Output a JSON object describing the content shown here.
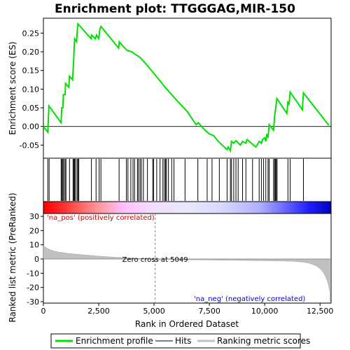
{
  "chart_data": {
    "type": "line",
    "title": "Enrichment plot: TTGGGAG,MIR-150",
    "xlabel": "Rank in Ordered Dataset",
    "ylabel_top": "Enrichment score (ES)",
    "ylabel_bottom": "Ranked list metric (PreRanked)",
    "xlim": [
      0,
      13000
    ],
    "ylim_top": [
      -0.085,
      0.29
    ],
    "ylim_bottom": [
      -31,
      32
    ],
    "x_ticks": [
      0,
      2500,
      5000,
      7500,
      10000,
      12500
    ],
    "x_tick_labels": [
      "0",
      "2,500",
      "5,000",
      "7,500",
      "10,000",
      "12,500"
    ],
    "y_ticks_top": [
      -0.05,
      0.0,
      0.05,
      0.1,
      0.15,
      0.2,
      0.25
    ],
    "y_tick_labels_top": [
      "-0.05",
      "0.00",
      "0.05",
      "0.10",
      "0.15",
      "0.20",
      "0.25"
    ],
    "y_ticks_bottom": [
      -30,
      -20,
      -10,
      0,
      10,
      20,
      30
    ],
    "y_tick_labels_bottom": [
      "-30",
      "-20",
      "-10",
      "0",
      "10",
      "20",
      "30"
    ],
    "es_curve": [
      [
        0,
        0.0
      ],
      [
        200,
        -0.015
      ],
      [
        250,
        0.055
      ],
      [
        800,
        0.01
      ],
      [
        830,
        0.05
      ],
      [
        880,
        0.05
      ],
      [
        900,
        0.085
      ],
      [
        980,
        0.085
      ],
      [
        1000,
        0.115
      ],
      [
        1150,
        0.105
      ],
      [
        1180,
        0.135
      ],
      [
        1320,
        0.125
      ],
      [
        1340,
        0.15
      ],
      [
        1370,
        0.18
      ],
      [
        1390,
        0.21
      ],
      [
        1410,
        0.235
      ],
      [
        1500,
        0.227
      ],
      [
        1520,
        0.25
      ],
      [
        1560,
        0.275
      ],
      [
        2150,
        0.235
      ],
      [
        2180,
        0.245
      ],
      [
        2350,
        0.235
      ],
      [
        2400,
        0.245
      ],
      [
        2500,
        0.235
      ],
      [
        2550,
        0.26
      ],
      [
        2600,
        0.268
      ],
      [
        3400,
        0.21
      ],
      [
        3430,
        0.227
      ],
      [
        3750,
        0.205
      ],
      [
        3800,
        0.203
      ],
      [
        4000,
        0.2
      ],
      [
        4100,
        0.195
      ],
      [
        4300,
        0.188
      ],
      [
        4400,
        0.183
      ],
      [
        4700,
        0.163
      ],
      [
        4950,
        0.145
      ],
      [
        5300,
        0.12
      ],
      [
        5500,
        0.105
      ],
      [
        5800,
        0.085
      ],
      [
        6100,
        0.065
      ],
      [
        6500,
        0.04
      ],
      [
        6900,
        0.005
      ],
      [
        7000,
        0.01
      ],
      [
        7300,
        -0.01
      ],
      [
        7500,
        -0.02
      ],
      [
        7700,
        -0.025
      ],
      [
        7900,
        -0.04
      ],
      [
        8300,
        -0.062
      ],
      [
        8350,
        -0.055
      ],
      [
        8450,
        -0.065
      ],
      [
        8500,
        -0.04
      ],
      [
        8600,
        -0.045
      ],
      [
        8700,
        -0.038
      ],
      [
        8900,
        -0.05
      ],
      [
        9000,
        -0.04
      ],
      [
        9150,
        -0.045
      ],
      [
        9200,
        -0.035
      ],
      [
        9400,
        -0.045
      ],
      [
        9600,
        -0.055
      ],
      [
        9750,
        -0.04
      ],
      [
        9850,
        -0.045
      ],
      [
        9900,
        -0.035
      ],
      [
        10000,
        -0.03
      ],
      [
        10050,
        -0.04
      ],
      [
        10100,
        -0.02
      ],
      [
        10150,
        -0.03
      ],
      [
        10200,
        0.005
      ],
      [
        10400,
        -0.01
      ],
      [
        10450,
        0.03
      ],
      [
        10500,
        0.05
      ],
      [
        10550,
        0.075
      ],
      [
        11000,
        0.035
      ],
      [
        11050,
        0.065
      ],
      [
        11100,
        0.06
      ],
      [
        11150,
        0.092
      ],
      [
        11700,
        0.045
      ],
      [
        11750,
        0.09
      ],
      [
        12900,
        0.003
      ]
    ],
    "hits": [
      200,
      260,
      800,
      840,
      880,
      920,
      980,
      1020,
      1180,
      1340,
      1380,
      1410,
      1450,
      1520,
      1560,
      1600,
      2170,
      2380,
      2520,
      2600,
      3420,
      3750,
      3820,
      3950,
      4050,
      4120,
      4250,
      4300,
      4370,
      4430,
      4520,
      4700,
      4940,
      4980,
      5120,
      5270,
      5400,
      5470,
      5520,
      5560,
      5650,
      5800,
      5900,
      6400,
      6980,
      7400,
      7620,
      7950,
      8300,
      8450,
      8500,
      8600,
      8700,
      8800,
      9000,
      9150,
      9450,
      9750,
      9850,
      9950,
      10050,
      10150,
      10200,
      10400,
      10450,
      10480,
      10520,
      10560,
      11050,
      11150,
      11750
    ],
    "zero_cross_x": 5049,
    "zero_cross_text": "Zero cross at 5049",
    "pos_label": "'na_pos' (positively correlated)",
    "neg_label": "'na_neg' (negatively correlated)",
    "legend": [
      "Enrichment profile",
      "Hits",
      "Ranking metric scores"
    ],
    "colors": {
      "es_line": "#00e000",
      "hits": "#000000",
      "metric_fill": "#c0c0c0",
      "pos_text": "#cc0000",
      "neg_text": "#0000cc",
      "bar_red": "#ff0000",
      "bar_blue": "#0000ff",
      "frame": "#000000",
      "grid_zero": "#808080"
    },
    "grid": false,
    "legend_position": "bottom"
  }
}
